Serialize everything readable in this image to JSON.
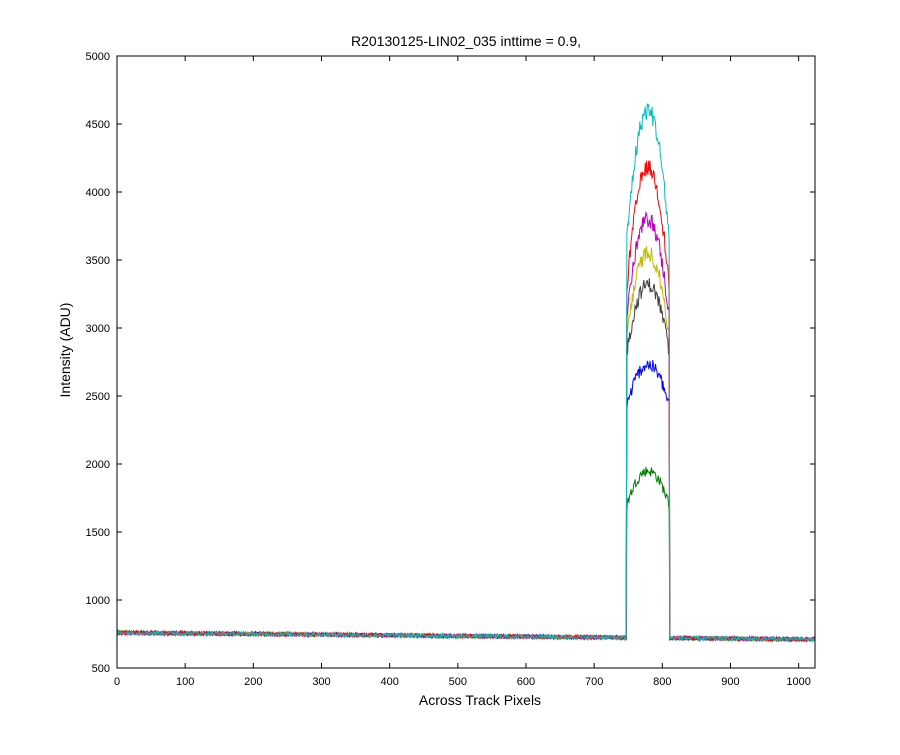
{
  "chart_data": {
    "type": "line",
    "title": "R20130125-LIN02_035 inttime = 0.9,",
    "xlabel": "Across Track Pixels",
    "ylabel": "Intensity (ADU)",
    "xlim": [
      0,
      1024
    ],
    "ylim": [
      500,
      5000
    ],
    "xticks": [
      "0",
      "100",
      "200",
      "300",
      "400",
      "500",
      "600",
      "700",
      "800",
      "900",
      "1000"
    ],
    "yticks": [
      "500",
      "1000",
      "1500",
      "2000",
      "2500",
      "3000",
      "3500",
      "4000",
      "4500",
      "5000"
    ],
    "grid": false,
    "legend": "none",
    "baseline": {
      "x_start": 0,
      "x_end": 1024,
      "y_start": 760,
      "y_end": 710
    },
    "plateau": {
      "x_start": 748,
      "x_end": 810
    },
    "series": [
      {
        "color": "#008000",
        "peak": 1950,
        "shoulder": 1700,
        "noise": 40
      },
      {
        "color": "#0000ff",
        "peak": 2730,
        "shoulder": 2420,
        "noise": 50
      },
      {
        "color": "#404040",
        "peak": 3320,
        "shoulder": 2820,
        "noise": 55
      },
      {
        "color": "#bfbf00",
        "peak": 3550,
        "shoulder": 2950,
        "noise": 60
      },
      {
        "color": "#bf00bf",
        "peak": 3800,
        "shoulder": 3080,
        "noise": 60
      },
      {
        "color": "#ff0000",
        "peak": 4180,
        "shoulder": 3300,
        "noise": 60
      },
      {
        "color": "#00bfbf",
        "peak": 4600,
        "shoulder": 3650,
        "noise": 70
      }
    ]
  }
}
